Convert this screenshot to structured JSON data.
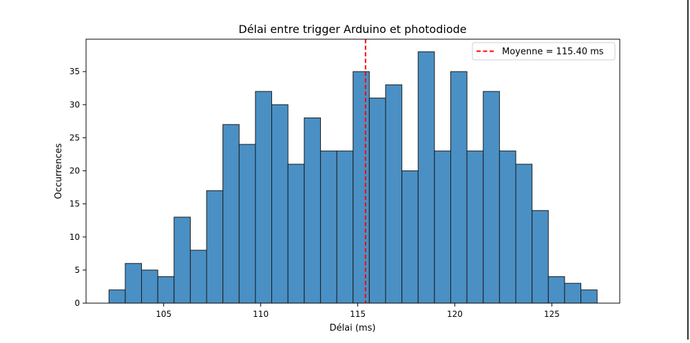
{
  "chart_data": {
    "type": "histogram",
    "title": "Délai entre trigger Arduino et photodiode",
    "xlabel": "Délai (ms)",
    "ylabel": "Occurrences",
    "xlim": [
      101.0,
      128.5
    ],
    "ylim": [
      0,
      39.9
    ],
    "x_ticks": [
      105,
      110,
      115,
      120,
      125
    ],
    "y_ticks": [
      0,
      5,
      10,
      15,
      20,
      25,
      30,
      35
    ],
    "bins": {
      "start": 102.18,
      "width": 0.8385,
      "counts": [
        2,
        6,
        5,
        4,
        13,
        8,
        17,
        27,
        24,
        32,
        30,
        21,
        28,
        23,
        23,
        35,
        31,
        33,
        20,
        38,
        23,
        35,
        23,
        32,
        23,
        21,
        14,
        4,
        3,
        2
      ]
    },
    "bar_color": "#4a90c4",
    "bar_edge_color": "#1a1a1a",
    "mean_line": {
      "x": 115.4,
      "color": "#ff0000",
      "label": "Moyenne = 115.40 ms"
    },
    "legend_position": "top-right",
    "grid": false
  }
}
